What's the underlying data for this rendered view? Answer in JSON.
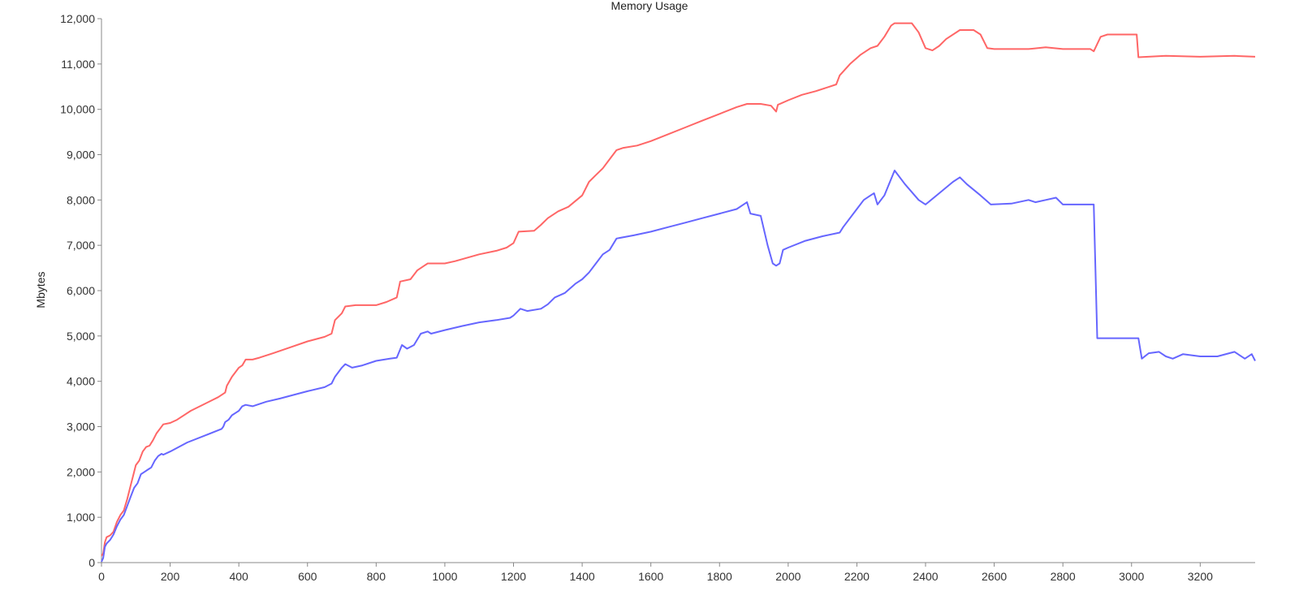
{
  "chart_data": {
    "type": "line",
    "title": "Memory Usage",
    "xlabel": "",
    "ylabel": "Mbytes",
    "xlim": [
      0,
      3360
    ],
    "ylim": [
      0,
      12000
    ],
    "x_ticks": [
      0,
      200,
      400,
      600,
      800,
      1000,
      1200,
      1400,
      1600,
      1800,
      2000,
      2200,
      2400,
      2600,
      2800,
      3000,
      3200
    ],
    "y_ticks": [
      0,
      1000,
      2000,
      3000,
      4000,
      5000,
      6000,
      7000,
      8000,
      9000,
      10000,
      11000,
      12000
    ],
    "grid": false,
    "legend": "none",
    "series": [
      {
        "color": "#ff6666",
        "points": [
          [
            0,
            150
          ],
          [
            5,
            200
          ],
          [
            10,
            450
          ],
          [
            15,
            560
          ],
          [
            25,
            600
          ],
          [
            35,
            680
          ],
          [
            45,
            900
          ],
          [
            55,
            1050
          ],
          [
            65,
            1150
          ],
          [
            75,
            1400
          ],
          [
            85,
            1700
          ],
          [
            95,
            2000
          ],
          [
            100,
            2150
          ],
          [
            110,
            2250
          ],
          [
            120,
            2450
          ],
          [
            130,
            2550
          ],
          [
            140,
            2580
          ],
          [
            150,
            2700
          ],
          [
            160,
            2850
          ],
          [
            170,
            2950
          ],
          [
            180,
            3050
          ],
          [
            200,
            3080
          ],
          [
            220,
            3150
          ],
          [
            260,
            3350
          ],
          [
            300,
            3500
          ],
          [
            340,
            3650
          ],
          [
            360,
            3750
          ],
          [
            365,
            3900
          ],
          [
            380,
            4100
          ],
          [
            400,
            4300
          ],
          [
            410,
            4350
          ],
          [
            420,
            4480
          ],
          [
            440,
            4480
          ],
          [
            460,
            4520
          ],
          [
            500,
            4620
          ],
          [
            550,
            4750
          ],
          [
            600,
            4880
          ],
          [
            650,
            4980
          ],
          [
            670,
            5050
          ],
          [
            680,
            5350
          ],
          [
            700,
            5500
          ],
          [
            710,
            5650
          ],
          [
            740,
            5680
          ],
          [
            800,
            5680
          ],
          [
            830,
            5750
          ],
          [
            860,
            5850
          ],
          [
            870,
            6200
          ],
          [
            900,
            6250
          ],
          [
            920,
            6450
          ],
          [
            940,
            6550
          ],
          [
            950,
            6600
          ],
          [
            1000,
            6600
          ],
          [
            1030,
            6650
          ],
          [
            1100,
            6800
          ],
          [
            1150,
            6880
          ],
          [
            1180,
            6950
          ],
          [
            1200,
            7050
          ],
          [
            1215,
            7300
          ],
          [
            1260,
            7320
          ],
          [
            1280,
            7450
          ],
          [
            1300,
            7600
          ],
          [
            1330,
            7750
          ],
          [
            1360,
            7850
          ],
          [
            1400,
            8100
          ],
          [
            1420,
            8400
          ],
          [
            1440,
            8550
          ],
          [
            1460,
            8700
          ],
          [
            1480,
            8900
          ],
          [
            1500,
            9100
          ],
          [
            1520,
            9150
          ],
          [
            1560,
            9200
          ],
          [
            1600,
            9300
          ],
          [
            1650,
            9450
          ],
          [
            1700,
            9600
          ],
          [
            1750,
            9750
          ],
          [
            1800,
            9900
          ],
          [
            1850,
            10050
          ],
          [
            1880,
            10120
          ],
          [
            1920,
            10120
          ],
          [
            1950,
            10080
          ],
          [
            1965,
            9950
          ],
          [
            1970,
            10100
          ],
          [
            2000,
            10200
          ],
          [
            2040,
            10320
          ],
          [
            2080,
            10400
          ],
          [
            2120,
            10500
          ],
          [
            2140,
            10550
          ],
          [
            2150,
            10750
          ],
          [
            2180,
            11000
          ],
          [
            2210,
            11200
          ],
          [
            2240,
            11350
          ],
          [
            2260,
            11400
          ],
          [
            2280,
            11600
          ],
          [
            2300,
            11850
          ],
          [
            2310,
            11900
          ],
          [
            2360,
            11900
          ],
          [
            2380,
            11700
          ],
          [
            2400,
            11350
          ],
          [
            2420,
            11300
          ],
          [
            2440,
            11400
          ],
          [
            2460,
            11550
          ],
          [
            2500,
            11750
          ],
          [
            2540,
            11750
          ],
          [
            2560,
            11650
          ],
          [
            2580,
            11350
          ],
          [
            2600,
            11330
          ],
          [
            2700,
            11330
          ],
          [
            2750,
            11370
          ],
          [
            2800,
            11330
          ],
          [
            2880,
            11330
          ],
          [
            2890,
            11280
          ],
          [
            2910,
            11600
          ],
          [
            2930,
            11650
          ],
          [
            3000,
            11650
          ],
          [
            3015,
            11650
          ],
          [
            3020,
            11150
          ],
          [
            3100,
            11180
          ],
          [
            3200,
            11160
          ],
          [
            3300,
            11180
          ],
          [
            3360,
            11160
          ]
        ]
      },
      {
        "color": "#6666ff",
        "points": [
          [
            0,
            20
          ],
          [
            5,
            100
          ],
          [
            10,
            350
          ],
          [
            15,
            420
          ],
          [
            25,
            500
          ],
          [
            35,
            620
          ],
          [
            45,
            800
          ],
          [
            55,
            950
          ],
          [
            65,
            1050
          ],
          [
            75,
            1250
          ],
          [
            85,
            1450
          ],
          [
            95,
            1650
          ],
          [
            105,
            1750
          ],
          [
            115,
            1950
          ],
          [
            125,
            2000
          ],
          [
            135,
            2050
          ],
          [
            145,
            2100
          ],
          [
            155,
            2250
          ],
          [
            165,
            2350
          ],
          [
            175,
            2400
          ],
          [
            180,
            2380
          ],
          [
            200,
            2450
          ],
          [
            250,
            2650
          ],
          [
            300,
            2800
          ],
          [
            350,
            2950
          ],
          [
            355,
            3000
          ],
          [
            360,
            3100
          ],
          [
            370,
            3150
          ],
          [
            380,
            3250
          ],
          [
            390,
            3300
          ],
          [
            400,
            3350
          ],
          [
            410,
            3450
          ],
          [
            420,
            3480
          ],
          [
            440,
            3450
          ],
          [
            480,
            3550
          ],
          [
            520,
            3620
          ],
          [
            560,
            3700
          ],
          [
            600,
            3780
          ],
          [
            650,
            3870
          ],
          [
            670,
            3950
          ],
          [
            680,
            4100
          ],
          [
            690,
            4200
          ],
          [
            700,
            4300
          ],
          [
            710,
            4380
          ],
          [
            730,
            4300
          ],
          [
            760,
            4350
          ],
          [
            800,
            4450
          ],
          [
            840,
            4500
          ],
          [
            860,
            4520
          ],
          [
            875,
            4800
          ],
          [
            890,
            4720
          ],
          [
            910,
            4800
          ],
          [
            930,
            5050
          ],
          [
            950,
            5100
          ],
          [
            960,
            5050
          ],
          [
            1000,
            5130
          ],
          [
            1050,
            5220
          ],
          [
            1100,
            5300
          ],
          [
            1150,
            5350
          ],
          [
            1190,
            5400
          ],
          [
            1200,
            5450
          ],
          [
            1220,
            5600
          ],
          [
            1240,
            5550
          ],
          [
            1280,
            5600
          ],
          [
            1300,
            5700
          ],
          [
            1320,
            5850
          ],
          [
            1350,
            5950
          ],
          [
            1380,
            6150
          ],
          [
            1400,
            6250
          ],
          [
            1420,
            6400
          ],
          [
            1440,
            6600
          ],
          [
            1460,
            6800
          ],
          [
            1480,
            6900
          ],
          [
            1500,
            7150
          ],
          [
            1550,
            7220
          ],
          [
            1600,
            7300
          ],
          [
            1650,
            7400
          ],
          [
            1700,
            7500
          ],
          [
            1750,
            7600
          ],
          [
            1800,
            7700
          ],
          [
            1850,
            7800
          ],
          [
            1880,
            7950
          ],
          [
            1890,
            7700
          ],
          [
            1920,
            7650
          ],
          [
            1940,
            7000
          ],
          [
            1955,
            6600
          ],
          [
            1965,
            6550
          ],
          [
            1975,
            6600
          ],
          [
            1985,
            6900
          ],
          [
            2000,
            6950
          ],
          [
            2050,
            7100
          ],
          [
            2100,
            7200
          ],
          [
            2150,
            7280
          ],
          [
            2160,
            7400
          ],
          [
            2200,
            7800
          ],
          [
            2220,
            8000
          ],
          [
            2240,
            8100
          ],
          [
            2250,
            8150
          ],
          [
            2260,
            7900
          ],
          [
            2280,
            8100
          ],
          [
            2310,
            8650
          ],
          [
            2340,
            8350
          ],
          [
            2380,
            8000
          ],
          [
            2400,
            7900
          ],
          [
            2440,
            8150
          ],
          [
            2480,
            8400
          ],
          [
            2500,
            8500
          ],
          [
            2520,
            8350
          ],
          [
            2560,
            8100
          ],
          [
            2590,
            7900
          ],
          [
            2650,
            7920
          ],
          [
            2700,
            8000
          ],
          [
            2720,
            7950
          ],
          [
            2750,
            8000
          ],
          [
            2780,
            8050
          ],
          [
            2800,
            7900
          ],
          [
            2890,
            7900
          ],
          [
            2900,
            4950
          ],
          [
            3020,
            4950
          ],
          [
            3030,
            4500
          ],
          [
            3050,
            4620
          ],
          [
            3080,
            4650
          ],
          [
            3100,
            4550
          ],
          [
            3120,
            4500
          ],
          [
            3150,
            4600
          ],
          [
            3200,
            4550
          ],
          [
            3250,
            4550
          ],
          [
            3300,
            4650
          ],
          [
            3330,
            4500
          ],
          [
            3350,
            4600
          ],
          [
            3360,
            4450
          ]
        ]
      }
    ]
  }
}
